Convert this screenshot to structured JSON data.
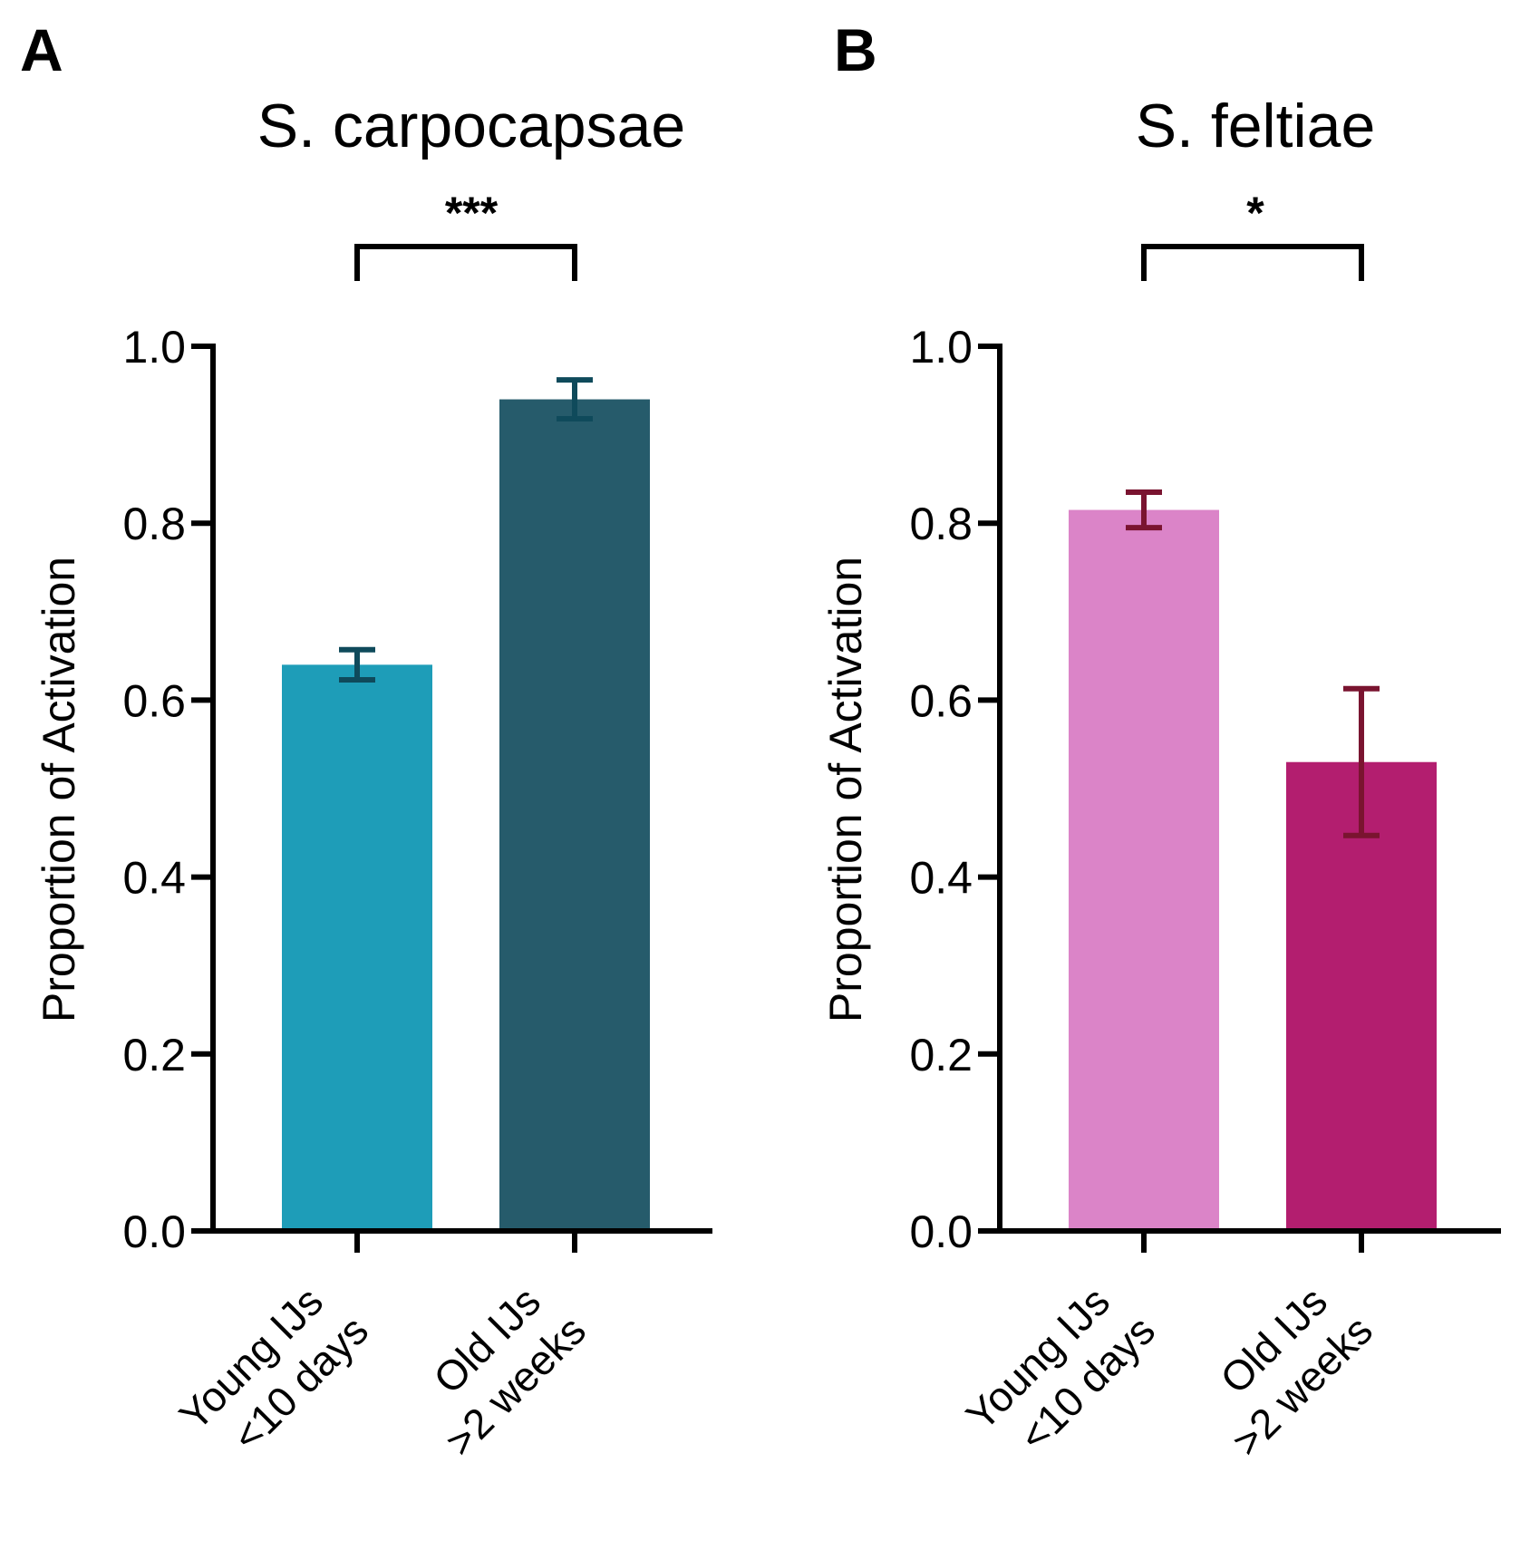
{
  "chart_data": [
    {
      "panel": "A",
      "type": "bar",
      "title": "S. carpocapsae",
      "ylabel": "Proportion of Activation",
      "xlabel": "",
      "ylim": [
        0,
        1.0
      ],
      "yticks": [
        0.0,
        0.2,
        0.4,
        0.6,
        0.8,
        1.0
      ],
      "ytick_labels": [
        "0.0",
        "0.2",
        "0.4",
        "0.6",
        "0.8",
        "1.0"
      ],
      "categories": [
        {
          "line1": "Young IJs",
          "line2": "<10 days"
        },
        {
          "line1": "Old IJs",
          "line2": ">2 weeks"
        }
      ],
      "values": [
        0.64,
        0.94
      ],
      "errors": [
        0.017,
        0.022
      ],
      "bar_colors": [
        "#1e9db8",
        "#265b6b"
      ],
      "error_color": "#0f4a5b",
      "significance": "***"
    },
    {
      "panel": "B",
      "type": "bar",
      "title": "S. feltiae",
      "ylabel": "Proportion of Activation",
      "xlabel": "",
      "ylim": [
        0,
        1.0
      ],
      "yticks": [
        0.0,
        0.2,
        0.4,
        0.6,
        0.8,
        1.0
      ],
      "ytick_labels": [
        "0.0",
        "0.2",
        "0.4",
        "0.6",
        "0.8",
        "1.0"
      ],
      "categories": [
        {
          "line1": "Young IJs",
          "line2": "<10 days"
        },
        {
          "line1": "Old IJs",
          "line2": ">2 weeks"
        }
      ],
      "values": [
        0.815,
        0.53
      ],
      "errors": [
        0.02,
        0.083
      ],
      "bar_colors": [
        "#db84c8",
        "#b31e6f"
      ],
      "error_color": "#7a1430",
      "significance": "*"
    }
  ]
}
